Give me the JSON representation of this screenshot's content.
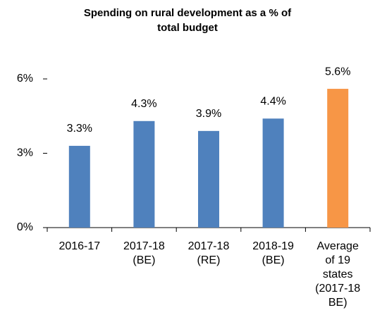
{
  "chart_data": {
    "type": "bar",
    "title": "Spending on rural development as a % of\ntotal budget",
    "categories": [
      "2016-17",
      "2017-18\n(BE)",
      "2017-18\n(RE)",
      "2018-19\n(BE)",
      "Average\nof 19\nstates\n(2017-18\nBE)"
    ],
    "values": [
      3.3,
      4.3,
      3.9,
      4.4,
      5.6
    ],
    "value_labels": [
      "3.3%",
      "4.3%",
      "3.9%",
      "4.4%",
      "5.6%"
    ],
    "colors": [
      "#4f81bd",
      "#4f81bd",
      "#4f81bd",
      "#4f81bd",
      "#f79646"
    ],
    "ylim": [
      0,
      6
    ],
    "yticks": [
      {
        "value": 0,
        "label": "0%"
      },
      {
        "value": 3,
        "label": "3%"
      },
      {
        "value": 6,
        "label": "6%"
      }
    ],
    "grid": false
  }
}
